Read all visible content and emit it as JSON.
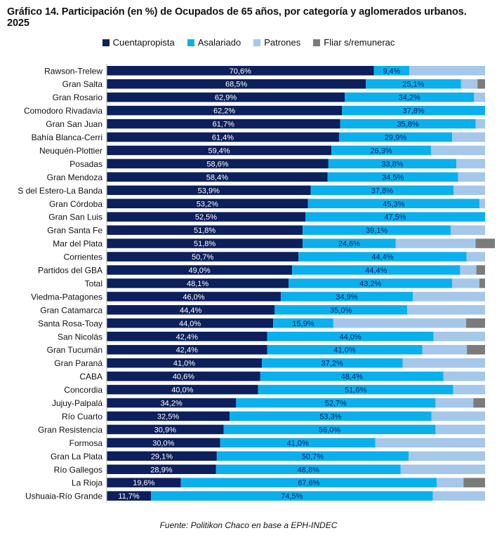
{
  "title": "Gráfico 14. Participación (en %) de Ocupados de 65 años, por categoría y aglomerados urbanos. 2025",
  "source": "Fuente: Politikon Chaco en base a EPH-INDEC",
  "colors": {
    "cuentapropista": "#0d1f5c",
    "asalariado": "#0ab0ee",
    "patrones": "#a5c7e9",
    "fliar": "#7b7b7b"
  },
  "chart_data": {
    "type": "bar",
    "stacked": true,
    "orientation": "horizontal",
    "xlim": [
      0,
      100
    ],
    "grid": false,
    "legend_position": "top",
    "categories": [
      "Rawson-Trelew",
      "Gran Salta",
      "Gran Rosario",
      "Comodoro Rivadavia",
      "Gran San Juan",
      "Bahía Blanca-Cerri",
      "Neuquén-Plottier",
      "Posadas",
      "Gran Mendoza",
      "S del Estero-La Banda",
      "Gran Córdoba",
      "Gran San Luis",
      "Gran Santa Fe",
      "Mar del Plata",
      "Corrientes",
      "Partidos del GBA",
      "Total",
      "Viedma-Patagones",
      "Gran Catamarca",
      "Santa Rosa-Toay",
      "San Nicolás",
      "Gran Tucumán",
      "Gran Paraná",
      "CABA",
      "Concordia",
      "Jujuy-Palpalá",
      "Río Cuarto",
      "Gran Resistencia",
      "Formosa",
      "Gran La Plata",
      "Río Gallegos",
      "La Rioja",
      "Ushuaia-Río Grande"
    ],
    "series": [
      {
        "name": "Cuentapropista",
        "values": [
          70.6,
          68.5,
          62.9,
          62.2,
          61.7,
          61.4,
          59.4,
          58.6,
          58.4,
          53.9,
          53.2,
          52.5,
          51.8,
          51.8,
          50.7,
          49.0,
          48.1,
          46.0,
          44.4,
          44.0,
          42.4,
          42.4,
          41.0,
          40.6,
          40.0,
          34.2,
          32.5,
          30.9,
          30.0,
          29.1,
          28.9,
          19.6,
          11.7
        ],
        "labels": [
          "70,6%",
          "68,5%",
          "62,9%",
          "62,2%",
          "61,7%",
          "61,4%",
          "59,4%",
          "58,6%",
          "58,4%",
          "53,9%",
          "53,2%",
          "52,5%",
          "51,8%",
          "51,8%",
          "50,7%",
          "49,0%",
          "48,1%",
          "46,0%",
          "44,4%",
          "44,0%",
          "42,4%",
          "42,4%",
          "41,0%",
          "40,6%",
          "40,0%",
          "34,2%",
          "32,5%",
          "30,9%",
          "30,0%",
          "29,1%",
          "28,9%",
          "19,6%",
          "11,7%"
        ]
      },
      {
        "name": "Asalariado",
        "values": [
          9.4,
          25.1,
          34.2,
          37.8,
          35.8,
          29.9,
          26.3,
          33.8,
          34.5,
          37.8,
          45.3,
          47.5,
          39.1,
          24.6,
          44.4,
          44.4,
          43.2,
          34.9,
          35.0,
          15.9,
          44.0,
          41.0,
          37.2,
          48.4,
          51.6,
          52.7,
          53.3,
          56.0,
          41.0,
          50.7,
          48.8,
          67.6,
          74.5
        ],
        "labels": [
          "9,4%",
          "25,1%",
          "34,2%",
          "37,8%",
          "35,8%",
          "29,9%",
          "26,3%",
          "33,8%",
          "34,5%",
          "37,8%",
          "45,3%",
          "47,5%",
          "39,1%",
          "24,6%",
          "44,4%",
          "44,4%",
          "43,2%",
          "34,9%",
          "35,0%",
          "15,9%",
          "44,0%",
          "41,0%",
          "37,2%",
          "48,4%",
          "51,6%",
          "52,7%",
          "53,3%",
          "56,0%",
          "41,0%",
          "50,7%",
          "48,8%",
          "67,6%",
          "74,5%"
        ]
      },
      {
        "name": "Patrones",
        "values": [
          20.0,
          4.4,
          2.9,
          0.0,
          2.5,
          8.7,
          14.3,
          7.6,
          7.1,
          8.3,
          1.5,
          0.0,
          9.1,
          21.1,
          4.9,
          4.3,
          7.2,
          19.1,
          20.6,
          35.1,
          13.6,
          11.8,
          21.8,
          11.0,
          8.4,
          10.0,
          14.2,
          13.1,
          29.0,
          20.2,
          22.3,
          7.1,
          13.8
        ]
      },
      {
        "name": "Fliar s/remunerac",
        "values": [
          0.0,
          2.0,
          0.0,
          0.0,
          0.0,
          0.0,
          0.0,
          0.0,
          0.0,
          0.0,
          0.0,
          0.0,
          0.0,
          5.1,
          0.0,
          2.3,
          1.5,
          0.0,
          0.0,
          5.0,
          0.0,
          4.8,
          0.0,
          0.0,
          0.0,
          3.1,
          0.0,
          0.0,
          0.0,
          0.0,
          0.0,
          5.7,
          0.0
        ]
      }
    ]
  }
}
